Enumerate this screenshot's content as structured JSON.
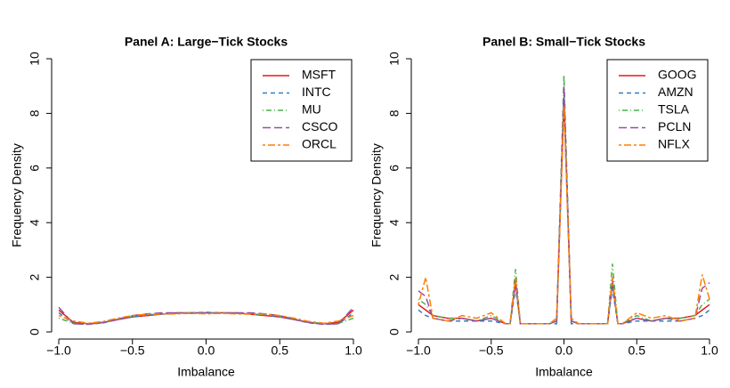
{
  "chart_data": [
    {
      "type": "line",
      "title": "Panel A: Large−Tick Stocks",
      "xlabel": "Imbalance",
      "ylabel": "Frequency Density",
      "x": [
        -1,
        -0.9,
        -0.8,
        -0.7,
        -0.6,
        -0.5,
        -0.4,
        -0.3,
        -0.2,
        -0.1,
        0,
        0.1,
        0.2,
        0.3,
        0.4,
        0.5,
        0.6,
        0.7,
        0.8,
        0.9,
        1
      ],
      "series": [
        {
          "name": "MSFT",
          "color": "#e41a1c",
          "dash": "solid",
          "values": [
            0.8,
            0.35,
            0.3,
            0.35,
            0.45,
            0.55,
            0.6,
            0.65,
            0.7,
            0.7,
            0.7,
            0.7,
            0.7,
            0.65,
            0.6,
            0.55,
            0.45,
            0.35,
            0.3,
            0.35,
            0.8
          ]
        },
        {
          "name": "INTC",
          "color": "#377eb8",
          "dash": "dashed",
          "values": [
            0.7,
            0.3,
            0.28,
            0.33,
            0.45,
            0.55,
            0.62,
            0.66,
            0.68,
            0.7,
            0.72,
            0.7,
            0.68,
            0.66,
            0.62,
            0.55,
            0.45,
            0.33,
            0.28,
            0.3,
            0.7
          ]
        },
        {
          "name": "MU",
          "color": "#4daf4a",
          "dash": "dotdash",
          "values": [
            0.5,
            0.32,
            0.3,
            0.36,
            0.48,
            0.58,
            0.63,
            0.66,
            0.68,
            0.7,
            0.68,
            0.7,
            0.68,
            0.66,
            0.63,
            0.58,
            0.48,
            0.36,
            0.3,
            0.32,
            0.5
          ]
        },
        {
          "name": "CSCO",
          "color": "#984ea3",
          "dash": "longdash",
          "values": [
            0.9,
            0.3,
            0.28,
            0.34,
            0.46,
            0.6,
            0.66,
            0.7,
            0.7,
            0.68,
            0.7,
            0.68,
            0.7,
            0.7,
            0.66,
            0.6,
            0.46,
            0.34,
            0.28,
            0.3,
            0.9
          ]
        },
        {
          "name": "ORCL",
          "color": "#ff7f00",
          "dash": "twodash",
          "values": [
            0.6,
            0.4,
            0.32,
            0.38,
            0.5,
            0.6,
            0.65,
            0.65,
            0.66,
            0.68,
            0.66,
            0.68,
            0.66,
            0.65,
            0.65,
            0.6,
            0.5,
            0.38,
            0.32,
            0.4,
            0.6
          ]
        }
      ],
      "xlim": [
        -1,
        1
      ],
      "ylim": [
        0,
        10
      ],
      "xticks": [
        {
          "value": -1,
          "label": "−1.0"
        },
        {
          "value": -0.5,
          "label": "−0.5"
        },
        {
          "value": 0,
          "label": "0.0"
        },
        {
          "value": 0.5,
          "label": "0.5"
        },
        {
          "value": 1,
          "label": "1.0"
        }
      ],
      "yticks": [
        0,
        2,
        4,
        6,
        8,
        10
      ],
      "legend": "top-right"
    },
    {
      "type": "line",
      "title": "Panel B: Small−Tick Stocks",
      "xlabel": "Imbalance",
      "ylabel": "Frequency Density",
      "x": [
        -1,
        -0.95,
        -0.9,
        -0.8,
        -0.7,
        -0.6,
        -0.5,
        -0.4,
        -0.37,
        -0.333,
        -0.3,
        -0.2,
        -0.1,
        -0.05,
        0,
        0.05,
        0.1,
        0.2,
        0.3,
        0.333,
        0.37,
        0.4,
        0.5,
        0.6,
        0.7,
        0.8,
        0.9,
        0.95,
        1
      ],
      "series": [
        {
          "name": "GOOG",
          "color": "#e41a1c",
          "dash": "solid",
          "values": [
            1.0,
            0.8,
            0.6,
            0.5,
            0.5,
            0.4,
            0.5,
            0.3,
            0.3,
            1.8,
            0.3,
            0.3,
            0.3,
            0.4,
            8.5,
            0.4,
            0.3,
            0.3,
            0.3,
            1.8,
            0.3,
            0.3,
            0.5,
            0.4,
            0.5,
            0.5,
            0.6,
            0.8,
            1.0
          ]
        },
        {
          "name": "AMZN",
          "color": "#377eb8",
          "dash": "dashed",
          "values": [
            0.8,
            0.6,
            0.5,
            0.4,
            0.4,
            0.4,
            0.4,
            0.3,
            0.3,
            1.6,
            0.3,
            0.3,
            0.3,
            0.3,
            8.8,
            0.3,
            0.3,
            0.3,
            0.3,
            1.6,
            0.3,
            0.3,
            0.4,
            0.4,
            0.4,
            0.4,
            0.5,
            0.6,
            0.8
          ]
        },
        {
          "name": "TSLA",
          "color": "#4daf4a",
          "dash": "dotdash",
          "values": [
            1.2,
            1.0,
            0.6,
            0.5,
            0.5,
            0.4,
            0.6,
            0.3,
            0.3,
            2.3,
            0.3,
            0.3,
            0.3,
            0.4,
            9.4,
            0.4,
            0.3,
            0.3,
            0.3,
            2.5,
            0.3,
            0.3,
            0.6,
            0.4,
            0.5,
            0.5,
            0.6,
            1.0,
            1.2
          ]
        },
        {
          "name": "PCLN",
          "color": "#984ea3",
          "dash": "longdash",
          "values": [
            1.5,
            1.3,
            0.5,
            0.4,
            0.5,
            0.4,
            0.5,
            0.3,
            0.3,
            1.9,
            0.3,
            0.3,
            0.3,
            0.4,
            9.0,
            0.4,
            0.3,
            0.3,
            0.3,
            1.9,
            0.3,
            0.3,
            0.5,
            0.4,
            0.5,
            0.4,
            0.5,
            1.6,
            1.8
          ]
        },
        {
          "name": "NFLX",
          "color": "#ff7f00",
          "dash": "twodash",
          "values": [
            1.0,
            2.0,
            0.5,
            0.4,
            0.6,
            0.5,
            0.7,
            0.3,
            0.3,
            2.0,
            0.3,
            0.3,
            0.3,
            0.5,
            8.3,
            0.5,
            0.3,
            0.3,
            0.3,
            2.0,
            0.3,
            0.3,
            0.7,
            0.5,
            0.6,
            0.4,
            0.5,
            2.1,
            1.2
          ]
        }
      ],
      "xlim": [
        -1,
        1
      ],
      "ylim": [
        0,
        10
      ],
      "xticks": [
        {
          "value": -1,
          "label": "−1.0"
        },
        {
          "value": -0.5,
          "label": "−0.5"
        },
        {
          "value": 0,
          "label": "0.0"
        },
        {
          "value": 0.5,
          "label": "0.5"
        },
        {
          "value": 1,
          "label": "1.0"
        }
      ],
      "yticks": [
        0,
        2,
        4,
        6,
        8,
        10
      ],
      "legend": "top-right"
    }
  ]
}
